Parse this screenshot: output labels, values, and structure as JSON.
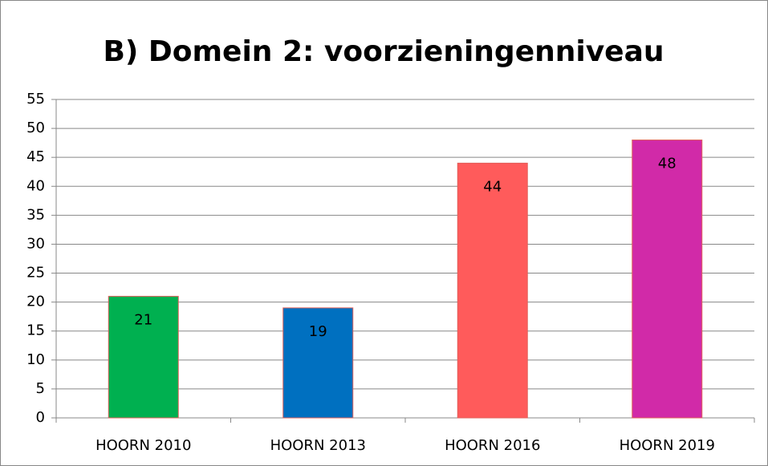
{
  "chart_data": {
    "type": "bar",
    "title": "B) Domein 2: voorzieningenniveau",
    "categories": [
      "HOORN 2010",
      "HOORN 2013",
      "HOORN 2016",
      "HOORN 2019"
    ],
    "values": [
      21,
      19,
      44,
      48
    ],
    "colors": [
      "#00b050",
      "#0070c0",
      "#ff5b5b",
      "#d12aa8"
    ],
    "ylim": [
      0,
      55
    ],
    "yticks": [
      0,
      5,
      10,
      15,
      20,
      25,
      30,
      35,
      40,
      45,
      50,
      55
    ],
    "grid": true
  }
}
